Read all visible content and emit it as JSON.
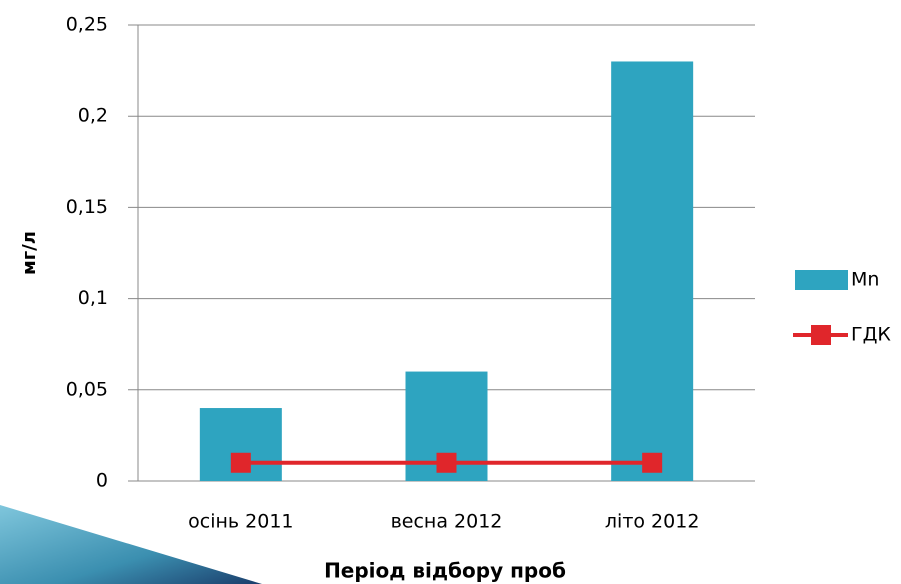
{
  "chart_data": {
    "type": "bar",
    "y_label": "мг/л",
    "x_label": "Період відбору проб",
    "categories": [
      "осінь 2011",
      "весна 2012",
      "літо 2012"
    ],
    "series": [
      {
        "name": "Mn",
        "type": "bar",
        "color": "#2ea4c0",
        "values": [
          0.04,
          0.06,
          0.23
        ]
      },
      {
        "name": "ГДК",
        "type": "line",
        "color": "#e0262b",
        "values": [
          0.01,
          0.01,
          0.01
        ]
      }
    ],
    "ylim": [
      0,
      0.25
    ],
    "yticks": [
      0,
      {
        "value": 0.05,
        "label": "0,05"
      },
      {
        "value": 0.1,
        "label": "0,1"
      },
      {
        "value": 0.15,
        "label": "0,15"
      },
      {
        "value": 0.2,
        "label": "0,2"
      },
      {
        "value": 0.25,
        "label": "0,25"
      }
    ],
    "grid": true,
    "legend": "right"
  }
}
